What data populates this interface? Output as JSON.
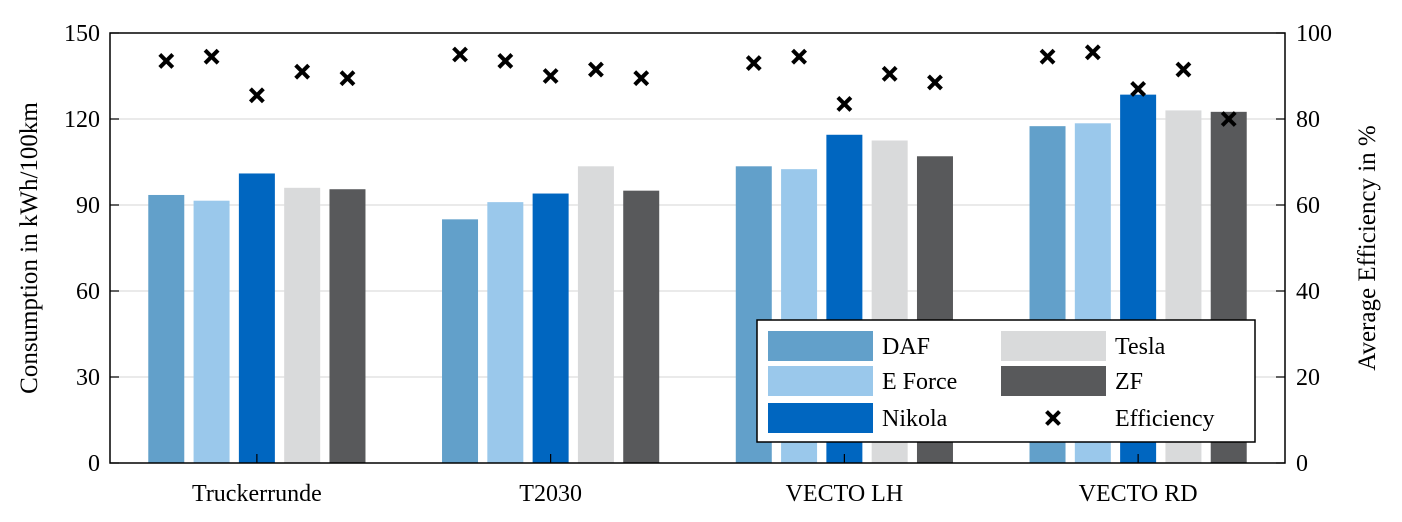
{
  "chart_data": {
    "type": "bar",
    "title": "",
    "xlabel": "",
    "ylabel": "Consumption in kWh/100km",
    "y2label": "Average Efficiency in %",
    "ylim": [
      0,
      150
    ],
    "y2lim": [
      0,
      100
    ],
    "yticks": [
      0,
      30,
      60,
      90,
      120,
      150
    ],
    "y2ticks": [
      0,
      20,
      40,
      60,
      80,
      100
    ],
    "grid": true,
    "legend_position": "bottom-right",
    "categories": [
      "Truckerrunde",
      "T2030",
      "VECTO LH",
      "VECTO RD"
    ],
    "series": [
      {
        "name": "DAF",
        "color": "#62a0ca",
        "values": [
          93.5,
          85,
          103.5,
          117.5
        ]
      },
      {
        "name": "E Force",
        "color": "#9ac8eb",
        "values": [
          91.5,
          91,
          102.5,
          118.5
        ]
      },
      {
        "name": "Nikola",
        "color": "#0066c0",
        "values": [
          101,
          94,
          114.5,
          128.5
        ]
      },
      {
        "name": "Tesla",
        "color": "#d9dadb",
        "values": [
          96,
          103.5,
          112.5,
          123
        ]
      },
      {
        "name": "ZF",
        "color": "#58595b",
        "values": [
          95.5,
          95,
          107,
          122.5
        ]
      }
    ],
    "efficiency": {
      "name": "Efficiency",
      "marker": "x",
      "axis": "right",
      "values": [
        [
          93.5,
          94.5,
          85.5,
          91,
          89.5
        ],
        [
          95,
          93.5,
          90,
          91.5,
          89.5
        ],
        [
          93,
          94.5,
          83.5,
          90.5,
          88.5
        ],
        [
          94.5,
          95.5,
          87,
          91.5,
          80
        ]
      ]
    },
    "legend": [
      "DAF",
      "Tesla",
      "E Force",
      "ZF",
      "Nikola",
      "Efficiency"
    ]
  }
}
